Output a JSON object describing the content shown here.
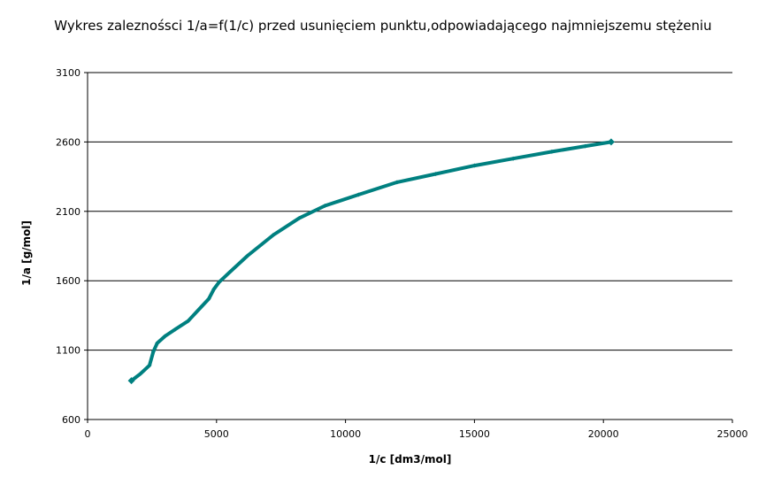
{
  "chart_data": {
    "type": "line",
    "title": "Wykres zaleznośsci 1/a=f(1/c) przed usunięciem punktu,odpowiadającego najmniejszemu stężeniu",
    "xlabel": "1/c [dm3/mol]",
    "ylabel": "1/a [g/mol]",
    "xlim": [
      0,
      25000
    ],
    "ylim": [
      600,
      3100
    ],
    "x_ticks": [
      0,
      5000,
      10000,
      15000,
      20000,
      25000
    ],
    "y_ticks": [
      600,
      1100,
      1600,
      2100,
      2600,
      3100
    ],
    "grid": "horizontal",
    "legend": "none",
    "color": "#008080",
    "series": [
      {
        "x": [
          1700,
          2050,
          2400,
          2550,
          2700,
          3000,
          3400,
          3900,
          4400,
          4700,
          4900,
          5100,
          5500,
          6200,
          7200,
          8200,
          9200,
          10500,
          12000,
          13500,
          15000,
          16500,
          18000,
          19300,
          20300
        ],
        "y": [
          880,
          930,
          990,
          1090,
          1150,
          1200,
          1250,
          1310,
          1410,
          1470,
          1540,
          1590,
          1660,
          1780,
          1930,
          2050,
          2140,
          2220,
          2310,
          2370,
          2430,
          2480,
          2530,
          2570,
          2600
        ]
      }
    ]
  }
}
